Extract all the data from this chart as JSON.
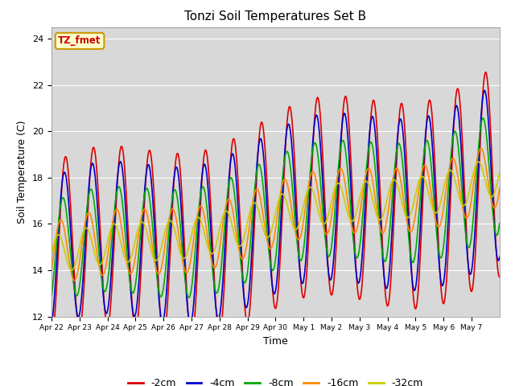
{
  "title": "Tonzi Soil Temperatures Set B",
  "xlabel": "Time",
  "ylabel": "Soil Temperature (C)",
  "ylim": [
    12,
    24.5
  ],
  "yticks": [
    12,
    14,
    16,
    18,
    20,
    22,
    24
  ],
  "annotation_text": "TZ_fmet",
  "annotation_bg": "#ffffcc",
  "annotation_border": "#cc9900",
  "annotation_text_color": "#cc0000",
  "background_color": "#d8d8d8",
  "lines": [
    {
      "label": "-2cm",
      "color": "#dd0000",
      "lw": 1.2
    },
    {
      "label": "-4cm",
      "color": "#0000cc",
      "lw": 1.2
    },
    {
      "label": "-8cm",
      "color": "#00aa00",
      "lw": 1.2
    },
    {
      "label": "-16cm",
      "color": "#ff8800",
      "lw": 1.2
    },
    {
      "label": "-32cm",
      "color": "#cccc00",
      "lw": 1.2
    }
  ],
  "tick_labels": [
    "Apr 22",
    "Apr 23",
    "Apr 24",
    "Apr 25",
    "Apr 26",
    "Apr 27",
    "Apr 28",
    "Apr 29",
    "Apr 30",
    "May 1",
    "May 2",
    "May 3",
    "May 4",
    "May 5",
    "May 6",
    "May 7"
  ],
  "n_days": 16,
  "pts_per_day": 144,
  "figsize": [
    6.4,
    4.8
  ],
  "dpi": 100
}
